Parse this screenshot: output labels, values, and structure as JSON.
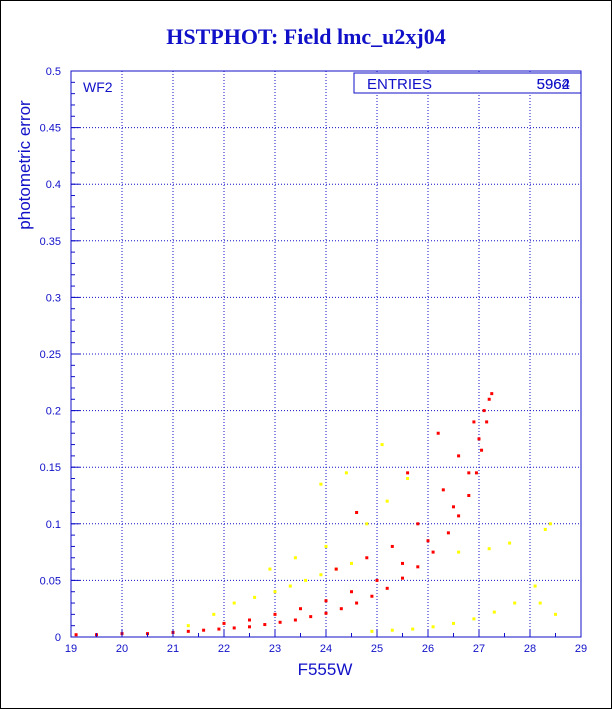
{
  "title": "HSTPHOT: Field lmc_u2xj04",
  "chart_data": {
    "type": "scatter",
    "panel_label": "WF2",
    "stats_box": {
      "label": "ENTRIES",
      "values": [
        "5962",
        "5964"
      ]
    },
    "xlabel": "F555W",
    "ylabel": "photometric error",
    "xlim": [
      19,
      29
    ],
    "ylim": [
      0,
      0.5
    ],
    "x_ticks": [
      "19",
      "20",
      "21",
      "22",
      "23",
      "24",
      "25",
      "26",
      "27",
      "28",
      "29"
    ],
    "y_ticks": [
      "0",
      "0.05",
      "0.1",
      "0.15",
      "0.2",
      "0.25",
      "0.3",
      "0.35",
      "0.4",
      "0.45",
      "0.5"
    ],
    "grid": true,
    "colors": {
      "axis": "#1010c8",
      "main": "#ff0000",
      "secondary": "#ffff00"
    },
    "series": [
      {
        "color": "#ff0000",
        "points": [
          [
            19.1,
            0.002
          ],
          [
            19.5,
            0.002
          ],
          [
            20.0,
            0.003
          ],
          [
            20.5,
            0.003
          ],
          [
            21.0,
            0.004
          ],
          [
            21.3,
            0.005
          ],
          [
            21.6,
            0.006
          ],
          [
            21.9,
            0.007
          ],
          [
            22.2,
            0.008
          ],
          [
            22.5,
            0.009
          ],
          [
            22.8,
            0.011
          ],
          [
            23.1,
            0.013
          ],
          [
            23.4,
            0.015
          ],
          [
            23.7,
            0.018
          ],
          [
            24.0,
            0.021
          ],
          [
            24.3,
            0.025
          ],
          [
            24.6,
            0.03
          ],
          [
            24.9,
            0.036
          ],
          [
            25.2,
            0.043
          ],
          [
            25.5,
            0.052
          ],
          [
            25.8,
            0.062
          ],
          [
            26.1,
            0.075
          ],
          [
            26.4,
            0.092
          ],
          [
            26.6,
            0.107
          ],
          [
            26.8,
            0.125
          ],
          [
            26.95,
            0.145
          ],
          [
            27.05,
            0.165
          ],
          [
            27.15,
            0.19
          ],
          [
            27.25,
            0.215
          ],
          [
            22.0,
            0.012
          ],
          [
            22.5,
            0.015
          ],
          [
            23.0,
            0.02
          ],
          [
            23.5,
            0.025
          ],
          [
            24.0,
            0.032
          ],
          [
            24.5,
            0.04
          ],
          [
            25.0,
            0.05
          ],
          [
            25.5,
            0.065
          ],
          [
            26.0,
            0.085
          ],
          [
            26.5,
            0.115
          ],
          [
            26.8,
            0.145
          ],
          [
            27.0,
            0.175
          ],
          [
            27.1,
            0.2
          ],
          [
            24.2,
            0.06
          ],
          [
            24.8,
            0.07
          ],
          [
            25.3,
            0.08
          ],
          [
            25.8,
            0.1
          ],
          [
            26.3,
            0.13
          ],
          [
            26.6,
            0.16
          ],
          [
            26.9,
            0.19
          ],
          [
            27.2,
            0.21
          ],
          [
            25.6,
            0.145
          ],
          [
            26.2,
            0.18
          ],
          [
            24.6,
            0.11
          ]
        ]
      },
      {
        "color": "#ffff00",
        "points": [
          [
            21.3,
            0.01
          ],
          [
            21.8,
            0.02
          ],
          [
            22.2,
            0.03
          ],
          [
            22.6,
            0.035
          ],
          [
            23.0,
            0.04
          ],
          [
            23.3,
            0.045
          ],
          [
            23.6,
            0.05
          ],
          [
            23.9,
            0.055
          ],
          [
            24.2,
            0.06
          ],
          [
            24.5,
            0.065
          ],
          [
            22.9,
            0.06
          ],
          [
            23.4,
            0.07
          ],
          [
            24.0,
            0.08
          ],
          [
            24.8,
            0.1
          ],
          [
            25.2,
            0.12
          ],
          [
            25.6,
            0.14
          ],
          [
            24.4,
            0.145
          ],
          [
            25.1,
            0.17
          ],
          [
            23.9,
            0.135
          ],
          [
            24.9,
            0.005
          ],
          [
            25.3,
            0.006
          ],
          [
            25.7,
            0.007
          ],
          [
            26.1,
            0.009
          ],
          [
            26.5,
            0.012
          ],
          [
            26.9,
            0.016
          ],
          [
            27.3,
            0.022
          ],
          [
            27.7,
            0.03
          ],
          [
            28.1,
            0.045
          ],
          [
            28.3,
            0.095
          ],
          [
            28.4,
            0.1
          ],
          [
            26.6,
            0.075
          ],
          [
            27.2,
            0.078
          ],
          [
            27.6,
            0.083
          ],
          [
            28.5,
            0.02
          ],
          [
            28.2,
            0.03
          ]
        ]
      }
    ]
  }
}
